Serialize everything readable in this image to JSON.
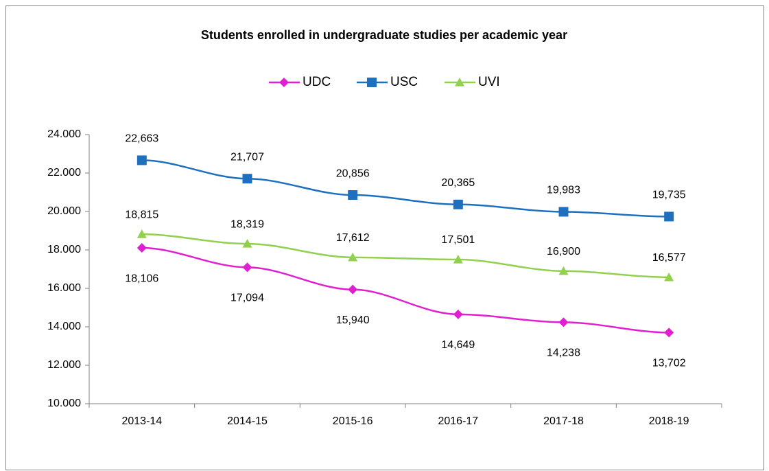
{
  "chart_data": {
    "type": "line",
    "title": "Students enrolled in undergraduate studies per academic year",
    "categories": [
      "2013-14",
      "2014-15",
      "2015-16",
      "2016-17",
      "2017-18",
      "2018-19"
    ],
    "series": [
      {
        "name": "UDC",
        "color": "#e020d0",
        "marker": "diamond",
        "values": [
          18106,
          17094,
          15940,
          14649,
          14238,
          13702
        ],
        "value_labels": [
          "18,106",
          "17,094",
          "15,940",
          "14,649",
          "14,238",
          "13,702"
        ]
      },
      {
        "name": "USC",
        "color": "#1f6fbf",
        "marker": "square",
        "values": [
          22663,
          21707,
          20856,
          20365,
          19983,
          19735
        ],
        "value_labels": [
          "22,663",
          "21,707",
          "20,856",
          "20,365",
          "19,983",
          "19,735"
        ]
      },
      {
        "name": "UVI",
        "color": "#92d050",
        "marker": "triangle",
        "values": [
          18815,
          18319,
          17612,
          17501,
          16900,
          16577
        ],
        "value_labels": [
          "18,815",
          "18,319",
          "17,612",
          "17,501",
          "16,900",
          "16,577"
        ]
      }
    ],
    "ylim": [
      10000,
      24000
    ],
    "yticks": [
      {
        "value": 10000,
        "label": "10.000"
      },
      {
        "value": 12000,
        "label": "12.000"
      },
      {
        "value": 14000,
        "label": "14.000"
      },
      {
        "value": 16000,
        "label": "16.000"
      },
      {
        "value": 18000,
        "label": "18.000"
      },
      {
        "value": 20000,
        "label": "20.000"
      },
      {
        "value": 22000,
        "label": "22.000"
      },
      {
        "value": 24000,
        "label": "24.000"
      }
    ],
    "grid": false,
    "legend": "top"
  }
}
